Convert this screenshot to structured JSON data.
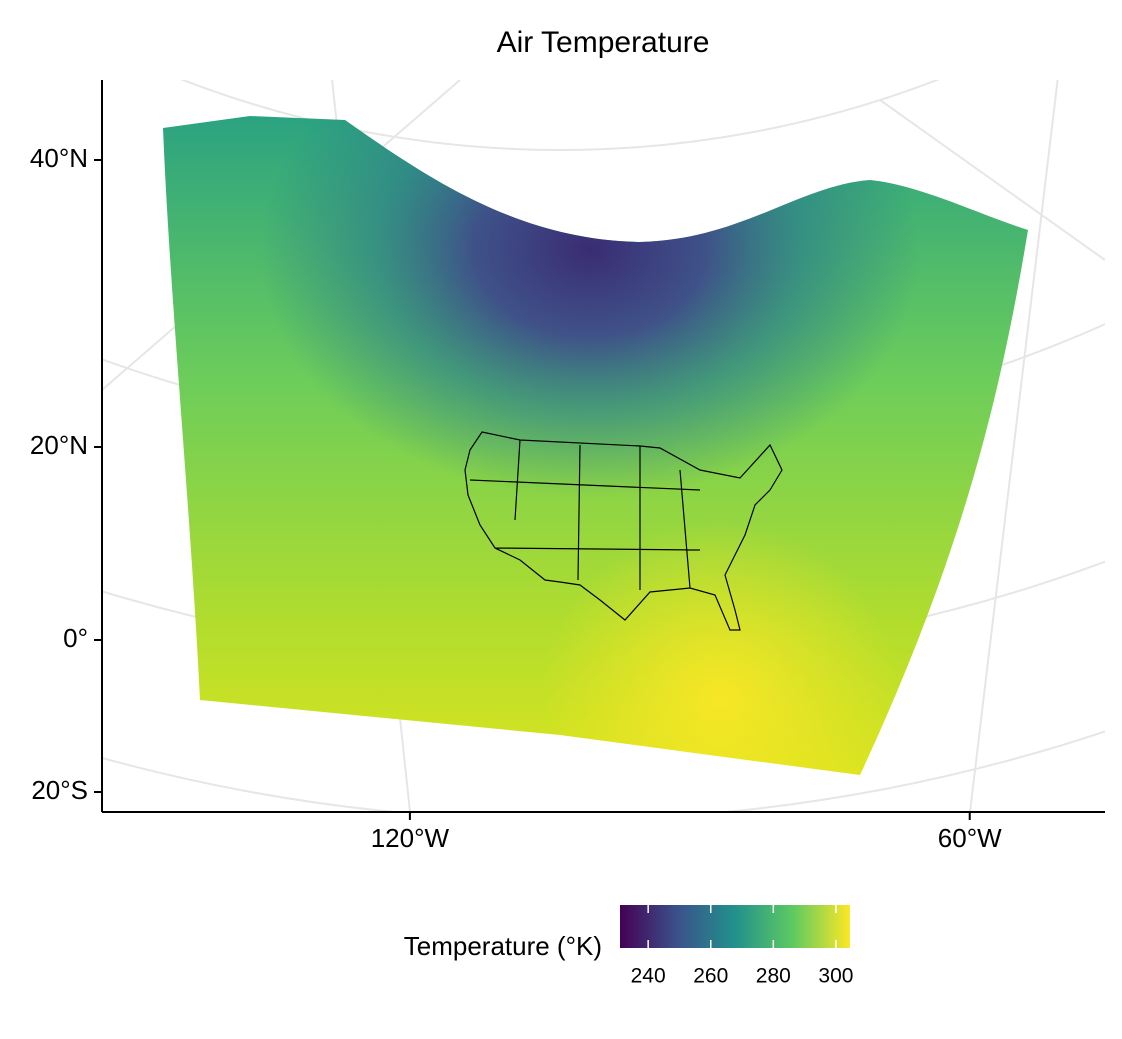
{
  "chart_data": {
    "type": "map",
    "title": "Air Temperature",
    "xlim": [
      -153,
      -45.5
    ],
    "xticks": [
      {
        "value": -120,
        "label": "120°W"
      },
      {
        "value": -60,
        "label": "60°W"
      }
    ],
    "yticks": [
      {
        "value": 40,
        "label": "40°N"
      },
      {
        "value": 20,
        "label": "20°N"
      },
      {
        "value": 0,
        "label": "0°"
      },
      {
        "value": -20,
        "label": "20°S"
      }
    ],
    "legend": {
      "title": "Temperature (°K)",
      "limits": [
        231,
        304.5
      ],
      "ticks": [
        240,
        260,
        280,
        300
      ],
      "colors": [
        "#440154",
        "#3b528b",
        "#21918c",
        "#5ec962",
        "#fde725"
      ]
    },
    "grid": true
  }
}
